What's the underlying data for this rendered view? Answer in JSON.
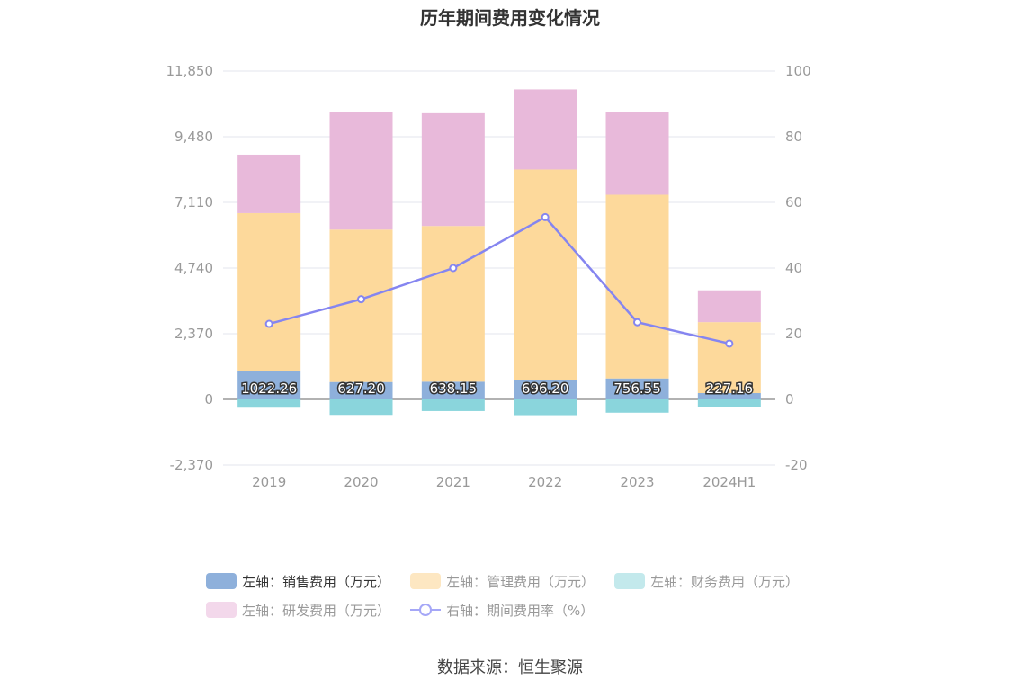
{
  "chart_data": {
    "type": "bar",
    "title": "历年期间费用变化情况",
    "categories": [
      "2019",
      "2020",
      "2021",
      "2022",
      "2023",
      "2024H1"
    ],
    "left_axis": {
      "ticks": [
        "11,850",
        "9,480",
        "7,110",
        "4,740",
        "2,370",
        "0",
        "-2,370"
      ],
      "ylim": [
        -2370,
        11850
      ]
    },
    "right_axis": {
      "ticks": [
        "100",
        "80",
        "60",
        "40",
        "20",
        "0",
        "-20"
      ],
      "ylim": [
        -20,
        100
      ]
    },
    "series": [
      {
        "name": "左轴：销售费用（万元）",
        "color": "#8eb0db",
        "values": [
          1022.26,
          627.2,
          638.15,
          696.2,
          756.55,
          227.16
        ],
        "labels": [
          "1022.26",
          "627.20",
          "638.15",
          "696.20",
          "756.55",
          "227.16"
        ]
      },
      {
        "name": "左轴：管理费用（万元）",
        "color": "#fdd99b",
        "values": [
          5700,
          5500,
          5620,
          7600,
          6630,
          2560
        ]
      },
      {
        "name": "左轴：财务费用（万元）",
        "color": "#8ad5dc",
        "values": [
          -300,
          -560,
          -420,
          -570,
          -480,
          -270
        ]
      },
      {
        "name": "左轴：研发费用（万元）",
        "color": "#e8b9da",
        "values": [
          2110,
          4250,
          4070,
          2890,
          2990,
          1150
        ]
      },
      {
        "name": "右轴：期间费用率（%）",
        "color": "#8585f0",
        "type": "line",
        "axis": "right",
        "values": [
          23,
          30.5,
          40,
          55.5,
          23.5,
          17
        ]
      }
    ],
    "legend_position": "bottom",
    "grid": true
  },
  "legend": [
    {
      "label": "左轴：销售费用（万元）",
      "color": "#8eb0db",
      "kind": "bar"
    },
    {
      "label": "左轴：管理费用（万元）",
      "color": "#fde7c2",
      "kind": "bar"
    },
    {
      "label": "左轴：财务费用（万元）",
      "color": "#c3e9ec",
      "kind": "bar"
    },
    {
      "label": "左轴：研发费用（万元）",
      "color": "#f3d8eb",
      "kind": "bar"
    },
    {
      "label": "右轴：期间费用率（%）",
      "color": "#a5a7f7",
      "kind": "line"
    }
  ],
  "source": "数据来源：恒生聚源"
}
